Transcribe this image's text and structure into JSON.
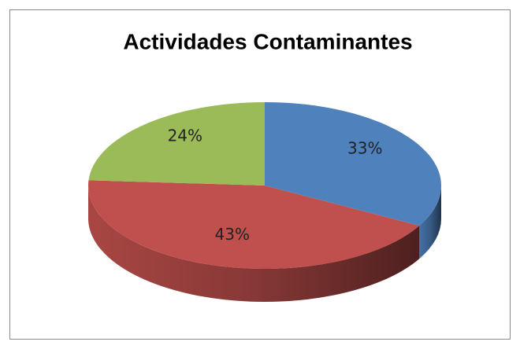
{
  "chart_data": {
    "type": "pie",
    "title": "Actividades Contaminantes",
    "values": [
      33,
      43,
      24
    ],
    "value_labels": [
      "33%",
      "43%",
      "24%"
    ],
    "colors": [
      "#4f81bd",
      "#c0504d",
      "#9bbb59"
    ]
  }
}
